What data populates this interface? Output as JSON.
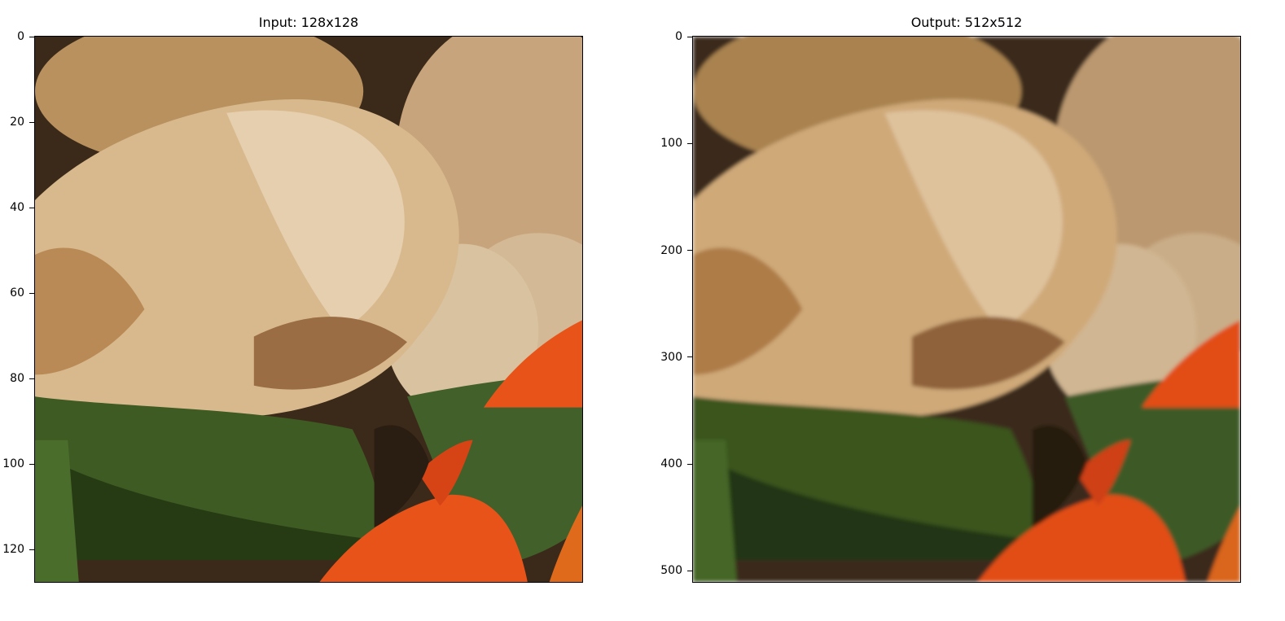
{
  "figures": [
    {
      "title": "Input: 128x128",
      "y_ticks": [
        "0",
        "20",
        "40",
        "60",
        "80",
        "100",
        "120"
      ],
      "y_tick_values": [
        0,
        20,
        40,
        60,
        80,
        100,
        120
      ],
      "y_range": [
        0,
        128
      ],
      "rendering": "pixelated"
    },
    {
      "title": "Output: 512x512",
      "y_ticks": [
        "0",
        "100",
        "200",
        "300",
        "400",
        "500"
      ],
      "y_tick_values": [
        0,
        100,
        200,
        300,
        400,
        500
      ],
      "y_range": [
        0,
        512
      ],
      "rendering": "smooth"
    }
  ],
  "scene": {
    "subject": "ginger root close-up with green leaves and orange tomato",
    "colors": {
      "ginger_light": "#e6c9a3",
      "ginger_mid": "#c9a27a",
      "ginger_dark": "#8a5f3a",
      "background_dark": "#3b2a1a",
      "leaf_green": "#3e5b23",
      "leaf_dark": "#263a14",
      "tomato_orange": "#e8531a",
      "tomato_dark": "#b83a10"
    }
  }
}
